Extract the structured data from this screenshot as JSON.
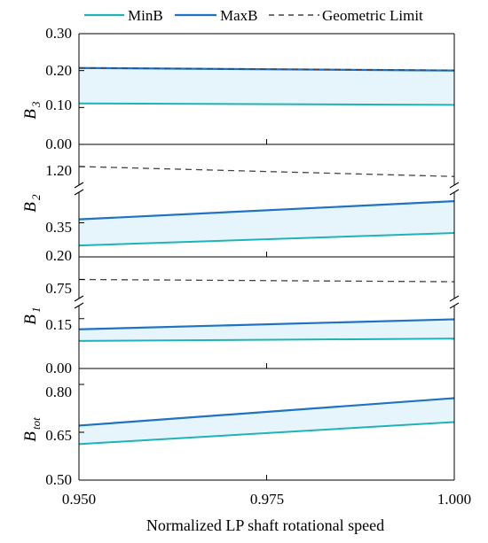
{
  "colors": {
    "minb": "#1fb3b8",
    "maxb": "#1f72c4",
    "limit": "#444444",
    "band": "#e6f5fb",
    "axis": "#000000"
  },
  "legend": {
    "minb": "MinB",
    "maxb": "MaxB",
    "limit": "Geometric Limit"
  },
  "chart_data": {
    "type": "line",
    "xlabel": "Normalized LP shaft rotational speed",
    "x": [
      0.95,
      1.0
    ],
    "xlim": [
      0.95,
      1.0
    ],
    "xticks": [
      "0.950",
      "0.975",
      "1.000"
    ],
    "legend_position": "top",
    "band_between": [
      "MinB",
      "MaxB"
    ],
    "panels": [
      {
        "id": "b3",
        "ylabel_main": "B",
        "ylabel_sub": "3",
        "ylim": [
          0.0,
          0.3
        ],
        "yticks": [
          "0.30",
          "0.20",
          "0.10",
          "0.00"
        ],
        "broken_axis": false,
        "series": [
          {
            "name": "MinB",
            "values": [
              0.111,
              0.107
            ]
          },
          {
            "name": "MaxB",
            "values": [
              0.207,
              0.2
            ]
          },
          {
            "name": "Geometric Limit",
            "values": [
              0.207,
              0.201
            ]
          }
        ]
      },
      {
        "id": "b2",
        "ylabel_main": "B",
        "ylabel_sub": "2",
        "broken_axis": true,
        "lower_ylim": [
          0.2,
          0.5
        ],
        "upper_ylim": [
          1.1,
          1.3
        ],
        "yticks": [
          "1.20",
          "0.35",
          "0.20"
        ],
        "series": [
          {
            "name": "MinB",
            "values": [
              0.25,
              0.305
            ]
          },
          {
            "name": "MaxB",
            "values": [
              0.365,
              0.445
            ]
          },
          {
            "name": "Geometric Limit",
            "values": [
              1.2,
              1.155
            ]
          }
        ]
      },
      {
        "id": "b1",
        "ylabel_main": "B",
        "ylabel_sub": "1",
        "broken_axis": true,
        "lower_ylim": [
          0.0,
          0.2
        ],
        "upper_ylim": [
          0.7,
          0.8
        ],
        "yticks": [
          "0.75",
          "0.15",
          "0.00"
        ],
        "series": [
          {
            "name": "MinB",
            "values": [
              0.083,
              0.09
            ]
          },
          {
            "name": "MaxB",
            "values": [
              0.118,
              0.148
            ]
          },
          {
            "name": "Geometric Limit",
            "values": [
              0.75,
              0.745
            ]
          }
        ]
      },
      {
        "id": "btot",
        "ylabel_main": "B",
        "ylabel_sub": "tot",
        "ylim": [
          0.5,
          0.85
        ],
        "yticks": [
          "0.80",
          "0.65",
          "0.50"
        ],
        "broken_axis": false,
        "series": [
          {
            "name": "MinB",
            "values": [
              0.613,
              0.682
            ]
          },
          {
            "name": "MaxB",
            "values": [
              0.671,
              0.757
            ]
          }
        ]
      }
    ]
  }
}
